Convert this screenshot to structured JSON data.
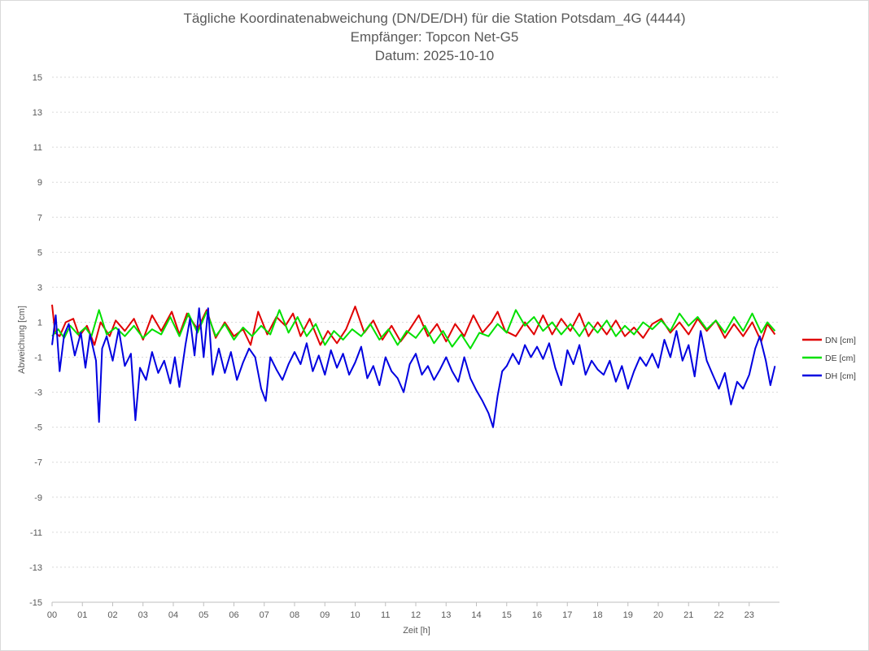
{
  "chart_data": {
    "type": "line",
    "title": "Tägliche Koordinatenabweichung (DN/DE/DH) für die Station Potsdam_4G (4444)",
    "subtitle": "Empfänger: Topcon Net-G5",
    "subtitle2": "Datum: 2025-10-10",
    "xlabel": "Zeit [h]",
    "ylabel": "Abweichung [cm]",
    "xlim": [
      0,
      24
    ],
    "ylim": [
      -15,
      15
    ],
    "yticks": [
      15,
      13,
      11,
      9,
      7,
      5,
      3,
      1,
      -1,
      -3,
      -5,
      -7,
      -9,
      -11,
      -13,
      -15
    ],
    "xticks": [
      "00",
      "01",
      "02",
      "03",
      "04",
      "05",
      "06",
      "07",
      "08",
      "09",
      "10",
      "11",
      "12",
      "13",
      "14",
      "15",
      "16",
      "17",
      "18",
      "19",
      "20",
      "21",
      "22",
      "23"
    ],
    "grid": true,
    "legend_position": "right",
    "series": [
      {
        "name": "DN [cm]",
        "color": "#e00000",
        "points": [
          [
            0.0,
            2.0
          ],
          [
            0.1,
            0.4
          ],
          [
            0.25,
            0.2
          ],
          [
            0.45,
            1.0
          ],
          [
            0.7,
            1.2
          ],
          [
            0.9,
            0.2
          ],
          [
            1.15,
            0.8
          ],
          [
            1.4,
            -0.3
          ],
          [
            1.6,
            1.0
          ],
          [
            1.9,
            0.2
          ],
          [
            2.1,
            1.1
          ],
          [
            2.4,
            0.5
          ],
          [
            2.7,
            1.2
          ],
          [
            3.0,
            0.0
          ],
          [
            3.3,
            1.4
          ],
          [
            3.6,
            0.5
          ],
          [
            3.95,
            1.6
          ],
          [
            4.2,
            0.3
          ],
          [
            4.45,
            1.5
          ],
          [
            4.8,
            0.6
          ],
          [
            5.1,
            1.7
          ],
          [
            5.4,
            0.1
          ],
          [
            5.7,
            1.0
          ],
          [
            6.0,
            0.2
          ],
          [
            6.3,
            0.6
          ],
          [
            6.55,
            -0.3
          ],
          [
            6.8,
            1.6
          ],
          [
            7.1,
            0.3
          ],
          [
            7.4,
            1.3
          ],
          [
            7.7,
            0.8
          ],
          [
            7.95,
            1.5
          ],
          [
            8.2,
            0.2
          ],
          [
            8.5,
            1.2
          ],
          [
            8.85,
            -0.3
          ],
          [
            9.1,
            0.5
          ],
          [
            9.4,
            -0.2
          ],
          [
            9.7,
            0.6
          ],
          [
            10.0,
            1.9
          ],
          [
            10.3,
            0.4
          ],
          [
            10.6,
            1.1
          ],
          [
            10.9,
            0.0
          ],
          [
            11.2,
            0.8
          ],
          [
            11.5,
            -0.1
          ],
          [
            11.8,
            0.6
          ],
          [
            12.1,
            1.4
          ],
          [
            12.4,
            0.2
          ],
          [
            12.7,
            0.9
          ],
          [
            13.0,
            -0.1
          ],
          [
            13.3,
            0.9
          ],
          [
            13.6,
            0.2
          ],
          [
            13.9,
            1.4
          ],
          [
            14.2,
            0.4
          ],
          [
            14.5,
            1.0
          ],
          [
            14.7,
            1.6
          ],
          [
            14.95,
            0.5
          ],
          [
            15.3,
            0.2
          ],
          [
            15.6,
            1.0
          ],
          [
            15.9,
            0.3
          ],
          [
            16.2,
            1.4
          ],
          [
            16.5,
            0.3
          ],
          [
            16.8,
            1.2
          ],
          [
            17.1,
            0.5
          ],
          [
            17.4,
            1.5
          ],
          [
            17.7,
            0.2
          ],
          [
            18.0,
            1.0
          ],
          [
            18.3,
            0.3
          ],
          [
            18.6,
            1.1
          ],
          [
            18.9,
            0.2
          ],
          [
            19.2,
            0.7
          ],
          [
            19.5,
            0.1
          ],
          [
            19.8,
            0.9
          ],
          [
            20.1,
            1.2
          ],
          [
            20.4,
            0.4
          ],
          [
            20.7,
            1.0
          ],
          [
            21.0,
            0.3
          ],
          [
            21.3,
            1.2
          ],
          [
            21.6,
            0.5
          ],
          [
            21.9,
            1.1
          ],
          [
            22.2,
            0.1
          ],
          [
            22.5,
            0.9
          ],
          [
            22.8,
            0.2
          ],
          [
            23.1,
            1.0
          ],
          [
            23.4,
            -0.1
          ],
          [
            23.6,
            0.9
          ],
          [
            23.85,
            0.3
          ]
        ]
      },
      {
        "name": "DE [cm]",
        "color": "#00e000",
        "points": [
          [
            0.0,
            0.2
          ],
          [
            0.2,
            0.6
          ],
          [
            0.4,
            0.1
          ],
          [
            0.6,
            0.8
          ],
          [
            0.85,
            0.3
          ],
          [
            1.1,
            0.7
          ],
          [
            1.3,
            0.2
          ],
          [
            1.55,
            1.7
          ],
          [
            1.8,
            0.3
          ],
          [
            2.1,
            0.7
          ],
          [
            2.4,
            0.2
          ],
          [
            2.7,
            0.8
          ],
          [
            3.0,
            0.1
          ],
          [
            3.3,
            0.6
          ],
          [
            3.6,
            0.3
          ],
          [
            3.9,
            1.3
          ],
          [
            4.2,
            0.2
          ],
          [
            4.5,
            1.5
          ],
          [
            4.8,
            0.4
          ],
          [
            5.1,
            1.6
          ],
          [
            5.4,
            0.2
          ],
          [
            5.7,
            0.9
          ],
          [
            6.0,
            0.0
          ],
          [
            6.3,
            0.7
          ],
          [
            6.6,
            0.2
          ],
          [
            6.9,
            0.8
          ],
          [
            7.2,
            0.3
          ],
          [
            7.5,
            1.7
          ],
          [
            7.8,
            0.4
          ],
          [
            8.1,
            1.3
          ],
          [
            8.4,
            0.2
          ],
          [
            8.7,
            0.9
          ],
          [
            9.0,
            -0.3
          ],
          [
            9.3,
            0.5
          ],
          [
            9.6,
            0.0
          ],
          [
            9.9,
            0.6
          ],
          [
            10.2,
            0.2
          ],
          [
            10.5,
            0.9
          ],
          [
            10.8,
            0.0
          ],
          [
            11.1,
            0.6
          ],
          [
            11.4,
            -0.3
          ],
          [
            11.7,
            0.5
          ],
          [
            12.0,
            0.1
          ],
          [
            12.3,
            0.8
          ],
          [
            12.6,
            -0.2
          ],
          [
            12.9,
            0.5
          ],
          [
            13.2,
            -0.4
          ],
          [
            13.5,
            0.3
          ],
          [
            13.8,
            -0.5
          ],
          [
            14.1,
            0.4
          ],
          [
            14.4,
            0.2
          ],
          [
            14.7,
            0.9
          ],
          [
            15.0,
            0.4
          ],
          [
            15.3,
            1.7
          ],
          [
            15.6,
            0.8
          ],
          [
            15.9,
            1.3
          ],
          [
            16.2,
            0.5
          ],
          [
            16.5,
            1.0
          ],
          [
            16.8,
            0.3
          ],
          [
            17.1,
            0.9
          ],
          [
            17.4,
            0.2
          ],
          [
            17.7,
            1.0
          ],
          [
            18.0,
            0.4
          ],
          [
            18.3,
            1.1
          ],
          [
            18.6,
            0.2
          ],
          [
            18.9,
            0.8
          ],
          [
            19.2,
            0.3
          ],
          [
            19.5,
            1.0
          ],
          [
            19.8,
            0.6
          ],
          [
            20.1,
            1.1
          ],
          [
            20.4,
            0.5
          ],
          [
            20.7,
            1.5
          ],
          [
            21.0,
            0.8
          ],
          [
            21.3,
            1.3
          ],
          [
            21.6,
            0.6
          ],
          [
            21.9,
            1.1
          ],
          [
            22.2,
            0.4
          ],
          [
            22.5,
            1.3
          ],
          [
            22.8,
            0.5
          ],
          [
            23.1,
            1.5
          ],
          [
            23.4,
            0.4
          ],
          [
            23.6,
            1.0
          ],
          [
            23.85,
            0.5
          ]
        ]
      },
      {
        "name": "DH [cm]",
        "color": "#0000e0",
        "points": [
          [
            0.0,
            -0.3
          ],
          [
            0.12,
            1.4
          ],
          [
            0.25,
            -1.8
          ],
          [
            0.4,
            0.3
          ],
          [
            0.55,
            0.9
          ],
          [
            0.75,
            -0.9
          ],
          [
            0.95,
            0.4
          ],
          [
            1.1,
            -1.6
          ],
          [
            1.25,
            0.3
          ],
          [
            1.45,
            -1.2
          ],
          [
            1.55,
            -4.7
          ],
          [
            1.65,
            -0.5
          ],
          [
            1.8,
            0.2
          ],
          [
            2.0,
            -1.2
          ],
          [
            2.2,
            0.6
          ],
          [
            2.4,
            -1.5
          ],
          [
            2.6,
            -0.8
          ],
          [
            2.75,
            -4.6
          ],
          [
            2.9,
            -1.6
          ],
          [
            3.1,
            -2.3
          ],
          [
            3.3,
            -0.7
          ],
          [
            3.5,
            -1.9
          ],
          [
            3.7,
            -1.2
          ],
          [
            3.9,
            -2.5
          ],
          [
            4.05,
            -1.0
          ],
          [
            4.2,
            -2.7
          ],
          [
            4.4,
            -0.3
          ],
          [
            4.55,
            1.2
          ],
          [
            4.7,
            -0.9
          ],
          [
            4.85,
            1.8
          ],
          [
            5.0,
            -1.0
          ],
          [
            5.15,
            1.8
          ],
          [
            5.3,
            -2.0
          ],
          [
            5.5,
            -0.5
          ],
          [
            5.7,
            -1.9
          ],
          [
            5.9,
            -0.7
          ],
          [
            6.1,
            -2.3
          ],
          [
            6.3,
            -1.3
          ],
          [
            6.5,
            -0.5
          ],
          [
            6.7,
            -1.0
          ],
          [
            6.9,
            -2.8
          ],
          [
            7.05,
            -3.5
          ],
          [
            7.2,
            -1.0
          ],
          [
            7.4,
            -1.7
          ],
          [
            7.6,
            -2.3
          ],
          [
            7.8,
            -1.4
          ],
          [
            8.0,
            -0.7
          ],
          [
            8.2,
            -1.4
          ],
          [
            8.4,
            -0.2
          ],
          [
            8.6,
            -1.8
          ],
          [
            8.8,
            -0.9
          ],
          [
            9.0,
            -2.0
          ],
          [
            9.2,
            -0.6
          ],
          [
            9.4,
            -1.6
          ],
          [
            9.6,
            -0.8
          ],
          [
            9.8,
            -2.0
          ],
          [
            10.0,
            -1.3
          ],
          [
            10.2,
            -0.4
          ],
          [
            10.4,
            -2.2
          ],
          [
            10.6,
            -1.5
          ],
          [
            10.8,
            -2.6
          ],
          [
            11.0,
            -1.0
          ],
          [
            11.2,
            -1.8
          ],
          [
            11.4,
            -2.2
          ],
          [
            11.6,
            -3.0
          ],
          [
            11.8,
            -1.4
          ],
          [
            12.0,
            -0.8
          ],
          [
            12.2,
            -2.0
          ],
          [
            12.4,
            -1.5
          ],
          [
            12.6,
            -2.3
          ],
          [
            12.8,
            -1.7
          ],
          [
            13.0,
            -1.0
          ],
          [
            13.2,
            -1.8
          ],
          [
            13.4,
            -2.4
          ],
          [
            13.6,
            -1.0
          ],
          [
            13.8,
            -2.2
          ],
          [
            14.0,
            -2.9
          ],
          [
            14.2,
            -3.5
          ],
          [
            14.4,
            -4.2
          ],
          [
            14.55,
            -5.0
          ],
          [
            14.7,
            -3.2
          ],
          [
            14.85,
            -1.8
          ],
          [
            15.0,
            -1.5
          ],
          [
            15.2,
            -0.8
          ],
          [
            15.4,
            -1.4
          ],
          [
            15.6,
            -0.3
          ],
          [
            15.8,
            -1.0
          ],
          [
            16.0,
            -0.4
          ],
          [
            16.2,
            -1.1
          ],
          [
            16.4,
            -0.2
          ],
          [
            16.6,
            -1.6
          ],
          [
            16.8,
            -2.6
          ],
          [
            17.0,
            -0.6
          ],
          [
            17.2,
            -1.4
          ],
          [
            17.4,
            -0.3
          ],
          [
            17.6,
            -2.0
          ],
          [
            17.8,
            -1.2
          ],
          [
            18.0,
            -1.7
          ],
          [
            18.2,
            -2.0
          ],
          [
            18.4,
            -1.2
          ],
          [
            18.6,
            -2.4
          ],
          [
            18.8,
            -1.5
          ],
          [
            19.0,
            -2.8
          ],
          [
            19.2,
            -1.8
          ],
          [
            19.4,
            -1.0
          ],
          [
            19.6,
            -1.5
          ],
          [
            19.8,
            -0.8
          ],
          [
            20.0,
            -1.6
          ],
          [
            20.2,
            0.0
          ],
          [
            20.4,
            -1.0
          ],
          [
            20.6,
            0.5
          ],
          [
            20.8,
            -1.2
          ],
          [
            21.0,
            -0.3
          ],
          [
            21.2,
            -2.1
          ],
          [
            21.4,
            0.5
          ],
          [
            21.6,
            -1.2
          ],
          [
            21.8,
            -2.0
          ],
          [
            22.0,
            -2.8
          ],
          [
            22.2,
            -1.9
          ],
          [
            22.4,
            -3.7
          ],
          [
            22.6,
            -2.4
          ],
          [
            22.8,
            -2.8
          ],
          [
            23.0,
            -2.0
          ],
          [
            23.2,
            -0.5
          ],
          [
            23.35,
            0.2
          ],
          [
            23.55,
            -1.2
          ],
          [
            23.7,
            -2.6
          ],
          [
            23.85,
            -1.5
          ]
        ]
      }
    ]
  }
}
